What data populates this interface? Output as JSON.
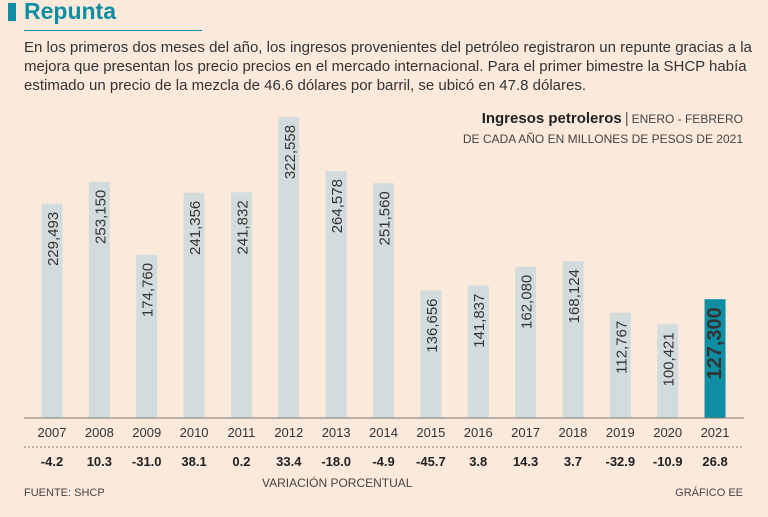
{
  "header": {
    "title": "Repunta",
    "intro": "En los primeros dos meses del año, los ingresos provenientes del petróleo registraron un repunte gracias a la mejora que presentan los precio precios en el mercado internacional. Para el primer bimestre la SHCP había estimado un precio de la mezcla de 46.6 dólares por barril, se ubicó en 47.8 dólares."
  },
  "chart_data": {
    "type": "bar",
    "title": "Ingresos petroleros",
    "period": "ENERO - FEBRERO",
    "subtitle": "DE CADA AÑO EN MILLONES DE PESOS DE 2021",
    "categories": [
      "2007",
      "2008",
      "2009",
      "2010",
      "2011",
      "2012",
      "2013",
      "2014",
      "2015",
      "2016",
      "2017",
      "2018",
      "2019",
      "2020",
      "2021"
    ],
    "values": [
      229493,
      253150,
      174760,
      241356,
      241832,
      322558,
      264578,
      251560,
      136656,
      141837,
      162080,
      168124,
      112767,
      100421,
      127300
    ],
    "value_labels": [
      "229,493",
      "253,150",
      "174,760",
      "241,356",
      "241,832",
      "322,558",
      "264,578",
      "251,560",
      "136,656",
      "141,837",
      "162,080",
      "168,124",
      "112,767",
      "100,421",
      "127,300"
    ],
    "variation": [
      "-4.2",
      "10.3",
      "-31.0",
      "38.1",
      "0.2",
      "33.4",
      "-18.0",
      "-4.9",
      "-45.7",
      "3.8",
      "14.3",
      "3.7",
      "-32.9",
      "-10.9",
      "26.8"
    ],
    "variation_label": "VARIACIÓN PORCENTUAL",
    "highlight_index": 14,
    "ylim": [
      0,
      330000
    ],
    "colors": {
      "bar": "#d3dcdc",
      "highlight": "#0d8ea3",
      "text": "#2b2b2b"
    }
  },
  "footer": {
    "source": "FUENTE: SHCP",
    "credit": "GRÁFICO EE"
  }
}
